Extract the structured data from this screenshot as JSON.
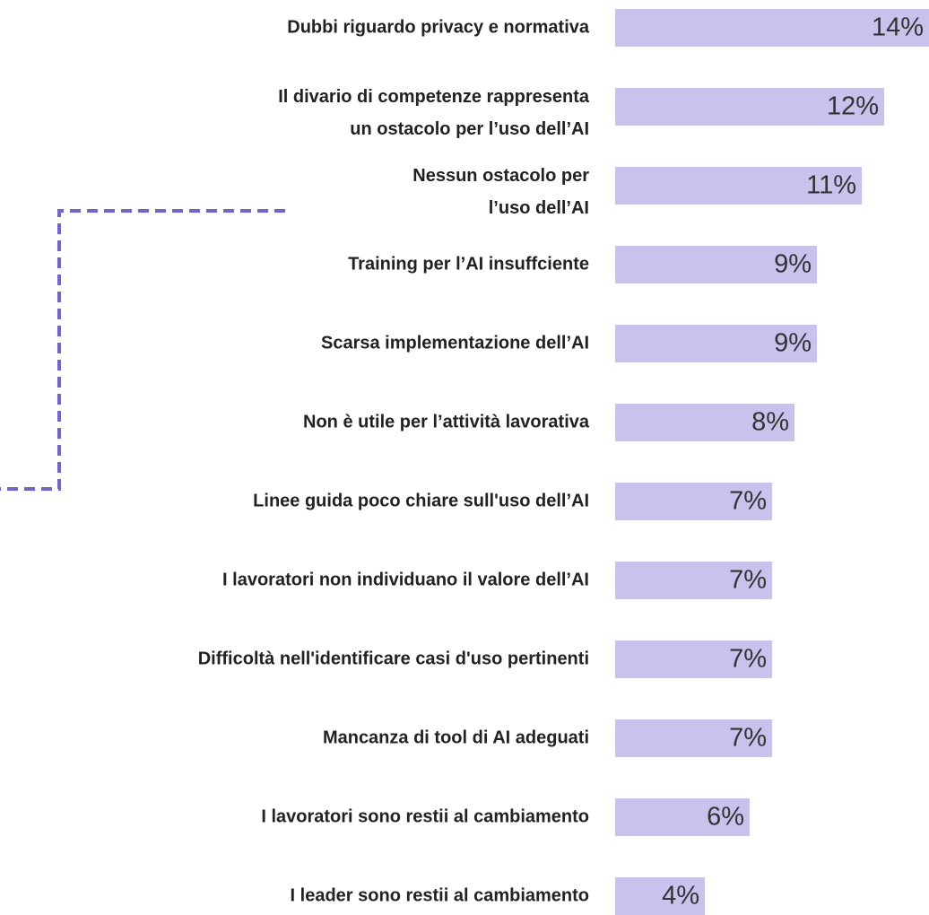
{
  "chart_data": {
    "type": "bar",
    "orientation": "horizontal",
    "color": "#c8c2ed",
    "categories": [
      "Dubbi riguardo privacy e normativa",
      "Il divario di competenze rappresenta\nun ostacolo per l’uso dell’AI",
      "Nessun ostacolo per\nl’uso dell’AI",
      "Training per l’AI insuffciente",
      "Scarsa implementazione dell’AI",
      "Non è utile per l’attività lavorativa",
      "Linee guida poco chiare sull'uso dell’AI",
      "I lavoratori non individuano il valore dell’AI",
      "Difficoltà nell'identificare casi d'uso pertinenti",
      "Mancanza di tool di AI adeguati",
      "I lavoratori sono restii al cambiamento",
      "I leader sono restii al cambiamento"
    ],
    "values": [
      14,
      12,
      11,
      9,
      9,
      8,
      7,
      7,
      7,
      7,
      6,
      4
    ],
    "value_labels": [
      "14%",
      "12%",
      "11%",
      "9%",
      "9%",
      "8%",
      "7%",
      "7%",
      "7%",
      "7%",
      "6%",
      "4%"
    ]
  }
}
